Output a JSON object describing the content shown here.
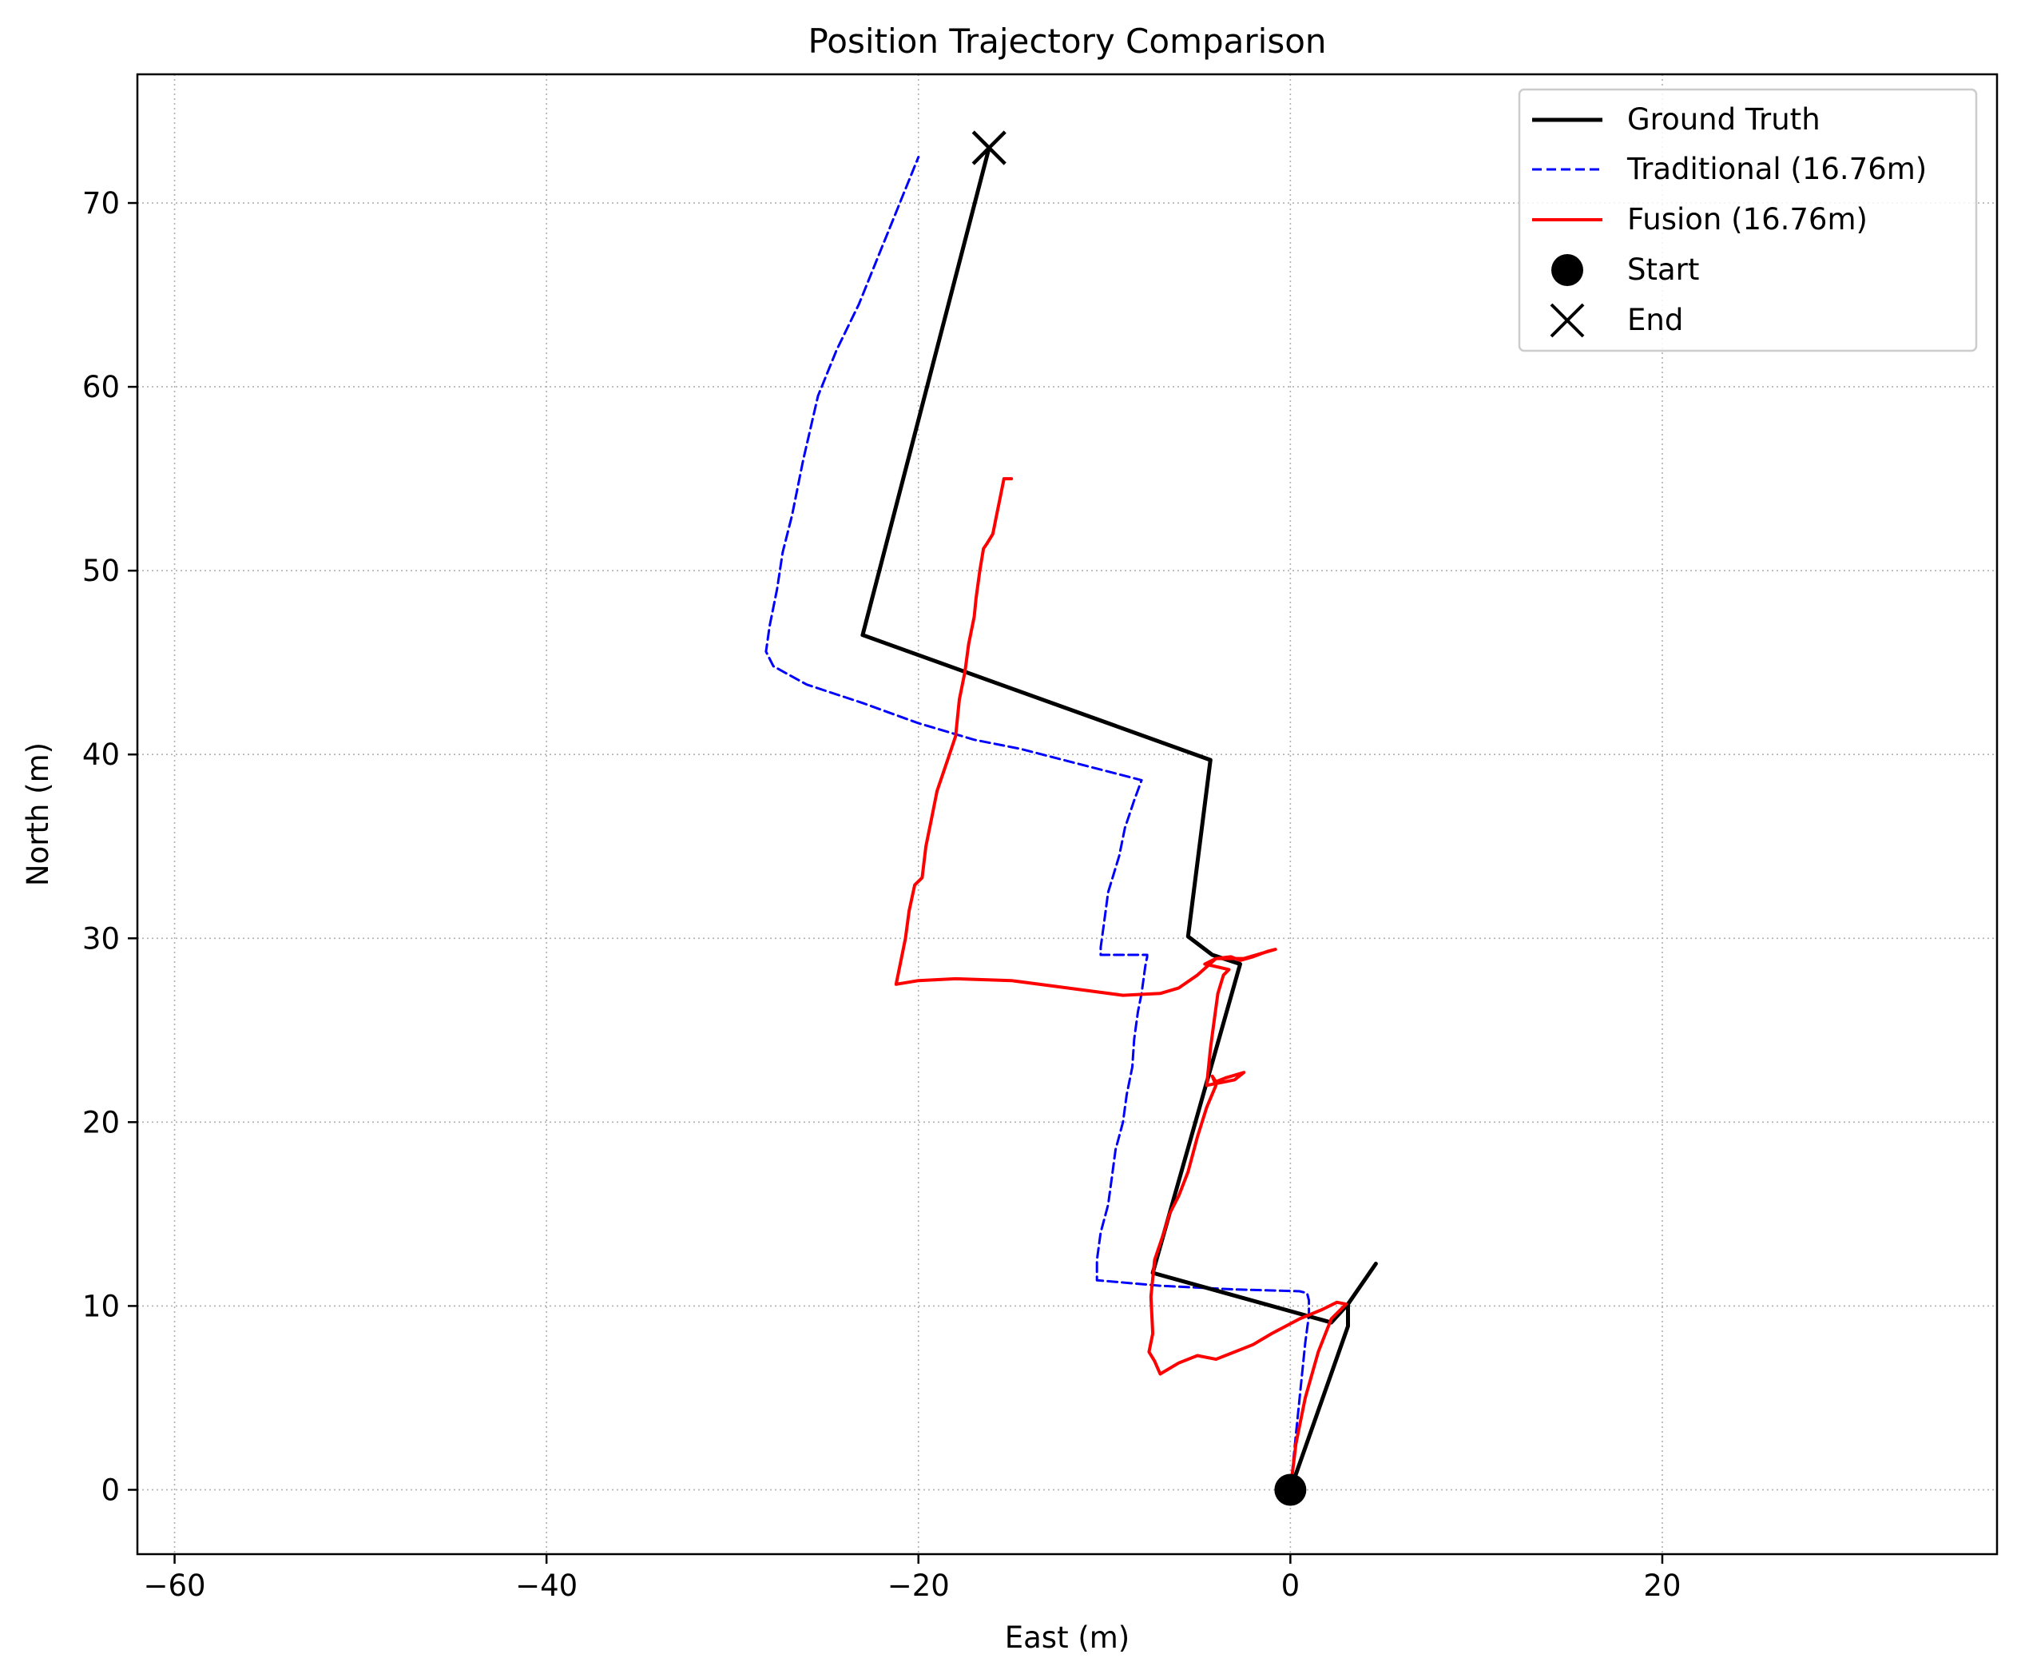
{
  "chart_data": {
    "type": "line",
    "title": "Position Trajectory Comparison",
    "xlabel": "East (m)",
    "ylabel": "North (m)",
    "xlim": [
      -62,
      38
    ],
    "ylim": [
      -3.5,
      77
    ],
    "xticks": [
      -60,
      -40,
      -20,
      0,
      20
    ],
    "yticks": [
      0,
      10,
      20,
      30,
      40,
      50,
      60,
      70
    ],
    "xtick_labels": [
      "−60",
      "−40",
      "−20",
      "0",
      "20"
    ],
    "ytick_labels": [
      "0",
      "10",
      "20",
      "30",
      "40",
      "50",
      "60",
      "70"
    ],
    "grid": true,
    "legend_position": "top-right",
    "series": [
      {
        "name": "Ground Truth",
        "color": "#000000",
        "style": "solid",
        "x": [
          0.0,
          3.1,
          3.1,
          4.6,
          3.1,
          2.2,
          -7.4,
          -2.7,
          -4.2,
          -5.5,
          -4.3,
          -23.0,
          -16.2
        ],
        "y": [
          0.0,
          8.9,
          10.1,
          12.3,
          10.1,
          9.1,
          11.8,
          28.6,
          29.1,
          30.1,
          39.7,
          46.5,
          73.0
        ]
      },
      {
        "name": "Traditional (16.76m)",
        "color": "#0000ff",
        "style": "dashed",
        "x": [
          0.0,
          0.3,
          0.6,
          0.8,
          1.0,
          1.0,
          0.9,
          0.5,
          -3.0,
          -7.0,
          -10.4,
          -10.4,
          -10.2,
          -9.8,
          -9.6,
          -9.4,
          -9.0,
          -8.8,
          -8.5,
          -8.4,
          -8.2,
          -8.0,
          -7.8,
          -7.7,
          -7.7,
          -8.2,
          -10.2,
          -10.2,
          -10.0,
          -9.8,
          -9.5,
          -9.2,
          -8.9,
          -8.4,
          -8.0,
          -14.5,
          -17.0,
          -20.0,
          -23.0,
          -26.0,
          -27.8,
          -28.2,
          -28.0,
          -27.6,
          -27.3,
          -26.8,
          -26.2,
          -25.4,
          -24.4,
          -23.2,
          -22.2,
          -21.4,
          -20.8,
          -20.0
        ],
        "y": [
          0.0,
          3.0,
          6.0,
          8.0,
          9.5,
          10.3,
          10.7,
          10.8,
          10.9,
          11.1,
          11.4,
          12.5,
          14.0,
          15.5,
          17.0,
          18.5,
          20.0,
          21.5,
          23.0,
          24.5,
          26.0,
          27.0,
          28.5,
          29.0,
          29.1,
          29.1,
          29.1,
          29.5,
          31.0,
          32.5,
          33.5,
          34.5,
          36.0,
          37.5,
          38.6,
          40.3,
          40.8,
          41.7,
          42.8,
          43.8,
          44.8,
          45.6,
          47.0,
          49.0,
          51.0,
          53.0,
          56.0,
          59.5,
          62.0,
          64.5,
          67.0,
          69.0,
          70.5,
          72.5
        ]
      },
      {
        "name": "Fusion (16.76m)",
        "color": "#ff0000",
        "style": "solid",
        "x": [
          0.0,
          0.3,
          0.8,
          1.5,
          2.2,
          3.0,
          2.5,
          1.7,
          0.5,
          -1.0,
          -2.0,
          -2.5,
          -3.5,
          -4.0,
          -5.0,
          -6.0,
          -7.0,
          -7.3,
          -7.6,
          -7.4,
          -7.5,
          -7.3,
          -6.8,
          -6.5,
          -6.0,
          -5.5,
          -5.0,
          -4.5,
          -4.0,
          -4.2,
          -4.0,
          -3.5,
          -2.5,
          -3.0,
          -4.5,
          -4.3,
          -4.1,
          -3.9,
          -3.6,
          -3.3,
          -4.6,
          -4.0,
          -3.2,
          -2.7,
          -2.0,
          -1.2,
          -0.8,
          -2.5,
          -4.0,
          -5.0,
          -6.0,
          -7.0,
          -9.0,
          -12.0,
          -15.0,
          -18.0,
          -20.0,
          -21.2,
          -21.0,
          -20.7,
          -20.5,
          -20.2,
          -19.8,
          -19.6,
          -19.3,
          -19.0,
          -18.5,
          -18.0,
          -17.8,
          -17.5,
          -17.3,
          -17.0,
          -16.9,
          -16.7,
          -16.5,
          -16.3,
          -16.0,
          -15.8,
          -15.6,
          -15.4,
          -15.2,
          -15.0
        ],
        "y": [
          0.0,
          2.5,
          5.0,
          7.5,
          9.3,
          10.1,
          10.2,
          9.8,
          9.3,
          8.5,
          7.9,
          7.7,
          7.3,
          7.1,
          7.3,
          6.9,
          6.3,
          7.0,
          7.5,
          8.5,
          10.5,
          12.5,
          14.0,
          15.0,
          16.0,
          17.3,
          19.2,
          20.8,
          22.0,
          22.5,
          22.2,
          22.4,
          22.7,
          22.3,
          22.0,
          24.0,
          25.5,
          27.0,
          28.0,
          28.3,
          28.6,
          28.9,
          29.0,
          28.8,
          29.0,
          29.3,
          29.4,
          28.9,
          28.9,
          28.0,
          27.3,
          27.0,
          26.9,
          27.3,
          27.7,
          27.8,
          27.7,
          27.5,
          28.5,
          30.0,
          31.5,
          32.9,
          33.3,
          35.0,
          36.5,
          38.0,
          39.5,
          41.0,
          43.0,
          44.5,
          46.0,
          47.5,
          48.5,
          50.0,
          51.2,
          51.5,
          52.0,
          53.0,
          54.0,
          55.0,
          55.0,
          55.0
        ]
      }
    ],
    "markers": [
      {
        "name": "Start",
        "symbol": "circle",
        "color": "#000000",
        "x": 0.0,
        "y": 0.0
      },
      {
        "name": "End",
        "symbol": "x",
        "color": "#000000",
        "x": -16.2,
        "y": 73.0
      }
    ]
  }
}
